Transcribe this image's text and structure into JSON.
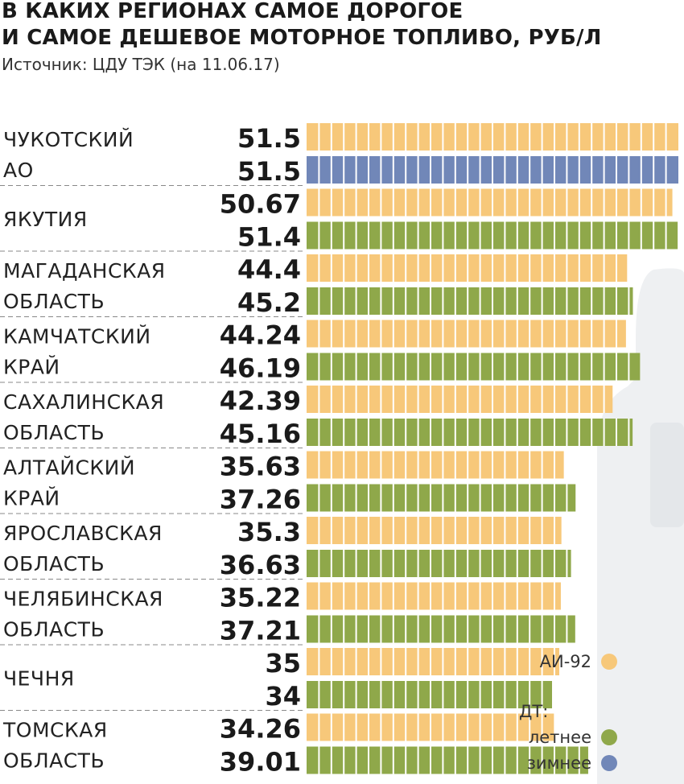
{
  "title_line1": "В КАКИХ РЕГИОНАХ САМОЕ ДОРОГОЕ",
  "title_line2": "И САМОЕ ДЕШЕВОЕ МОТОРНОЕ ТОПЛИВО, РУБ/Л",
  "source": "Источник: ЦДУ ТЭК (на 11.06.17)",
  "colors": {
    "ai92": "#f7c87a",
    "dt_summer": "#8fa84a",
    "dt_winter": "#7187b8",
    "segment_line": "#ffffff",
    "separator": "#888888",
    "pump": "#eef0f2"
  },
  "legend": {
    "ai92_label": "АИ-92",
    "dt_title": "ДТ:",
    "dt_summer_label": "летнее",
    "dt_winter_label": "зимнее"
  },
  "chart_data": {
    "type": "bar",
    "orientation": "horizontal",
    "title": "В КАКИХ РЕГИОНАХ САМОЕ ДОРОГОЕ И САМОЕ ДЕШЕВОЕ МОТОРНОЕ ТОПЛИВО, РУБ/Л",
    "unit": "руб/л",
    "xlim": [
      0,
      51.5
    ],
    "rows": [
      {
        "region": [
          "ЧУКОТСКИЙ",
          "АО"
        ],
        "ai92": 51.5,
        "dt": 51.5,
        "dt_type": "winter",
        "ai92_text": "51.5",
        "dt_text": "51.5"
      },
      {
        "region": [
          "ЯКУТИЯ"
        ],
        "ai92": 50.67,
        "dt": 51.4,
        "dt_type": "summer",
        "ai92_text": "50.67",
        "dt_text": "51.4"
      },
      {
        "region": [
          "МАГАДАНСКАЯ",
          "ОБЛАСТЬ"
        ],
        "ai92": 44.4,
        "dt": 45.2,
        "dt_type": "summer",
        "ai92_text": "44.4",
        "dt_text": "45.2"
      },
      {
        "region": [
          "КАМЧАТСКИЙ",
          "КРАЙ"
        ],
        "ai92": 44.24,
        "dt": 46.19,
        "dt_type": "summer",
        "ai92_text": "44.24",
        "dt_text": "46.19"
      },
      {
        "region": [
          "САХАЛИНСКАЯ",
          "ОБЛАСТЬ"
        ],
        "ai92": 42.39,
        "dt": 45.16,
        "dt_type": "summer",
        "ai92_text": "42.39",
        "dt_text": "45.16"
      },
      {
        "region": [
          "АЛТАЙСКИЙ",
          "КРАЙ"
        ],
        "ai92": 35.63,
        "dt": 37.26,
        "dt_type": "summer",
        "ai92_text": "35.63",
        "dt_text": "37.26"
      },
      {
        "region": [
          "ЯРОСЛАВСКАЯ",
          "ОБЛАСТЬ"
        ],
        "ai92": 35.3,
        "dt": 36.63,
        "dt_type": "summer",
        "ai92_text": "35.3",
        "dt_text": "36.63"
      },
      {
        "region": [
          "ЧЕЛЯБИНСКАЯ",
          "ОБЛАСТЬ"
        ],
        "ai92": 35.22,
        "dt": 37.21,
        "dt_type": "summer",
        "ai92_text": "35.22",
        "dt_text": "37.21"
      },
      {
        "region": [
          "ЧЕЧНЯ"
        ],
        "ai92": 35,
        "dt": 34,
        "dt_type": "summer",
        "ai92_text": "35",
        "dt_text": "34"
      },
      {
        "region": [
          "ТОМСКАЯ",
          "ОБЛАСТЬ"
        ],
        "ai92": 34.26,
        "dt": 39.01,
        "dt_type": "summer",
        "ai92_text": "34.26",
        "dt_text": "39.01"
      }
    ]
  }
}
